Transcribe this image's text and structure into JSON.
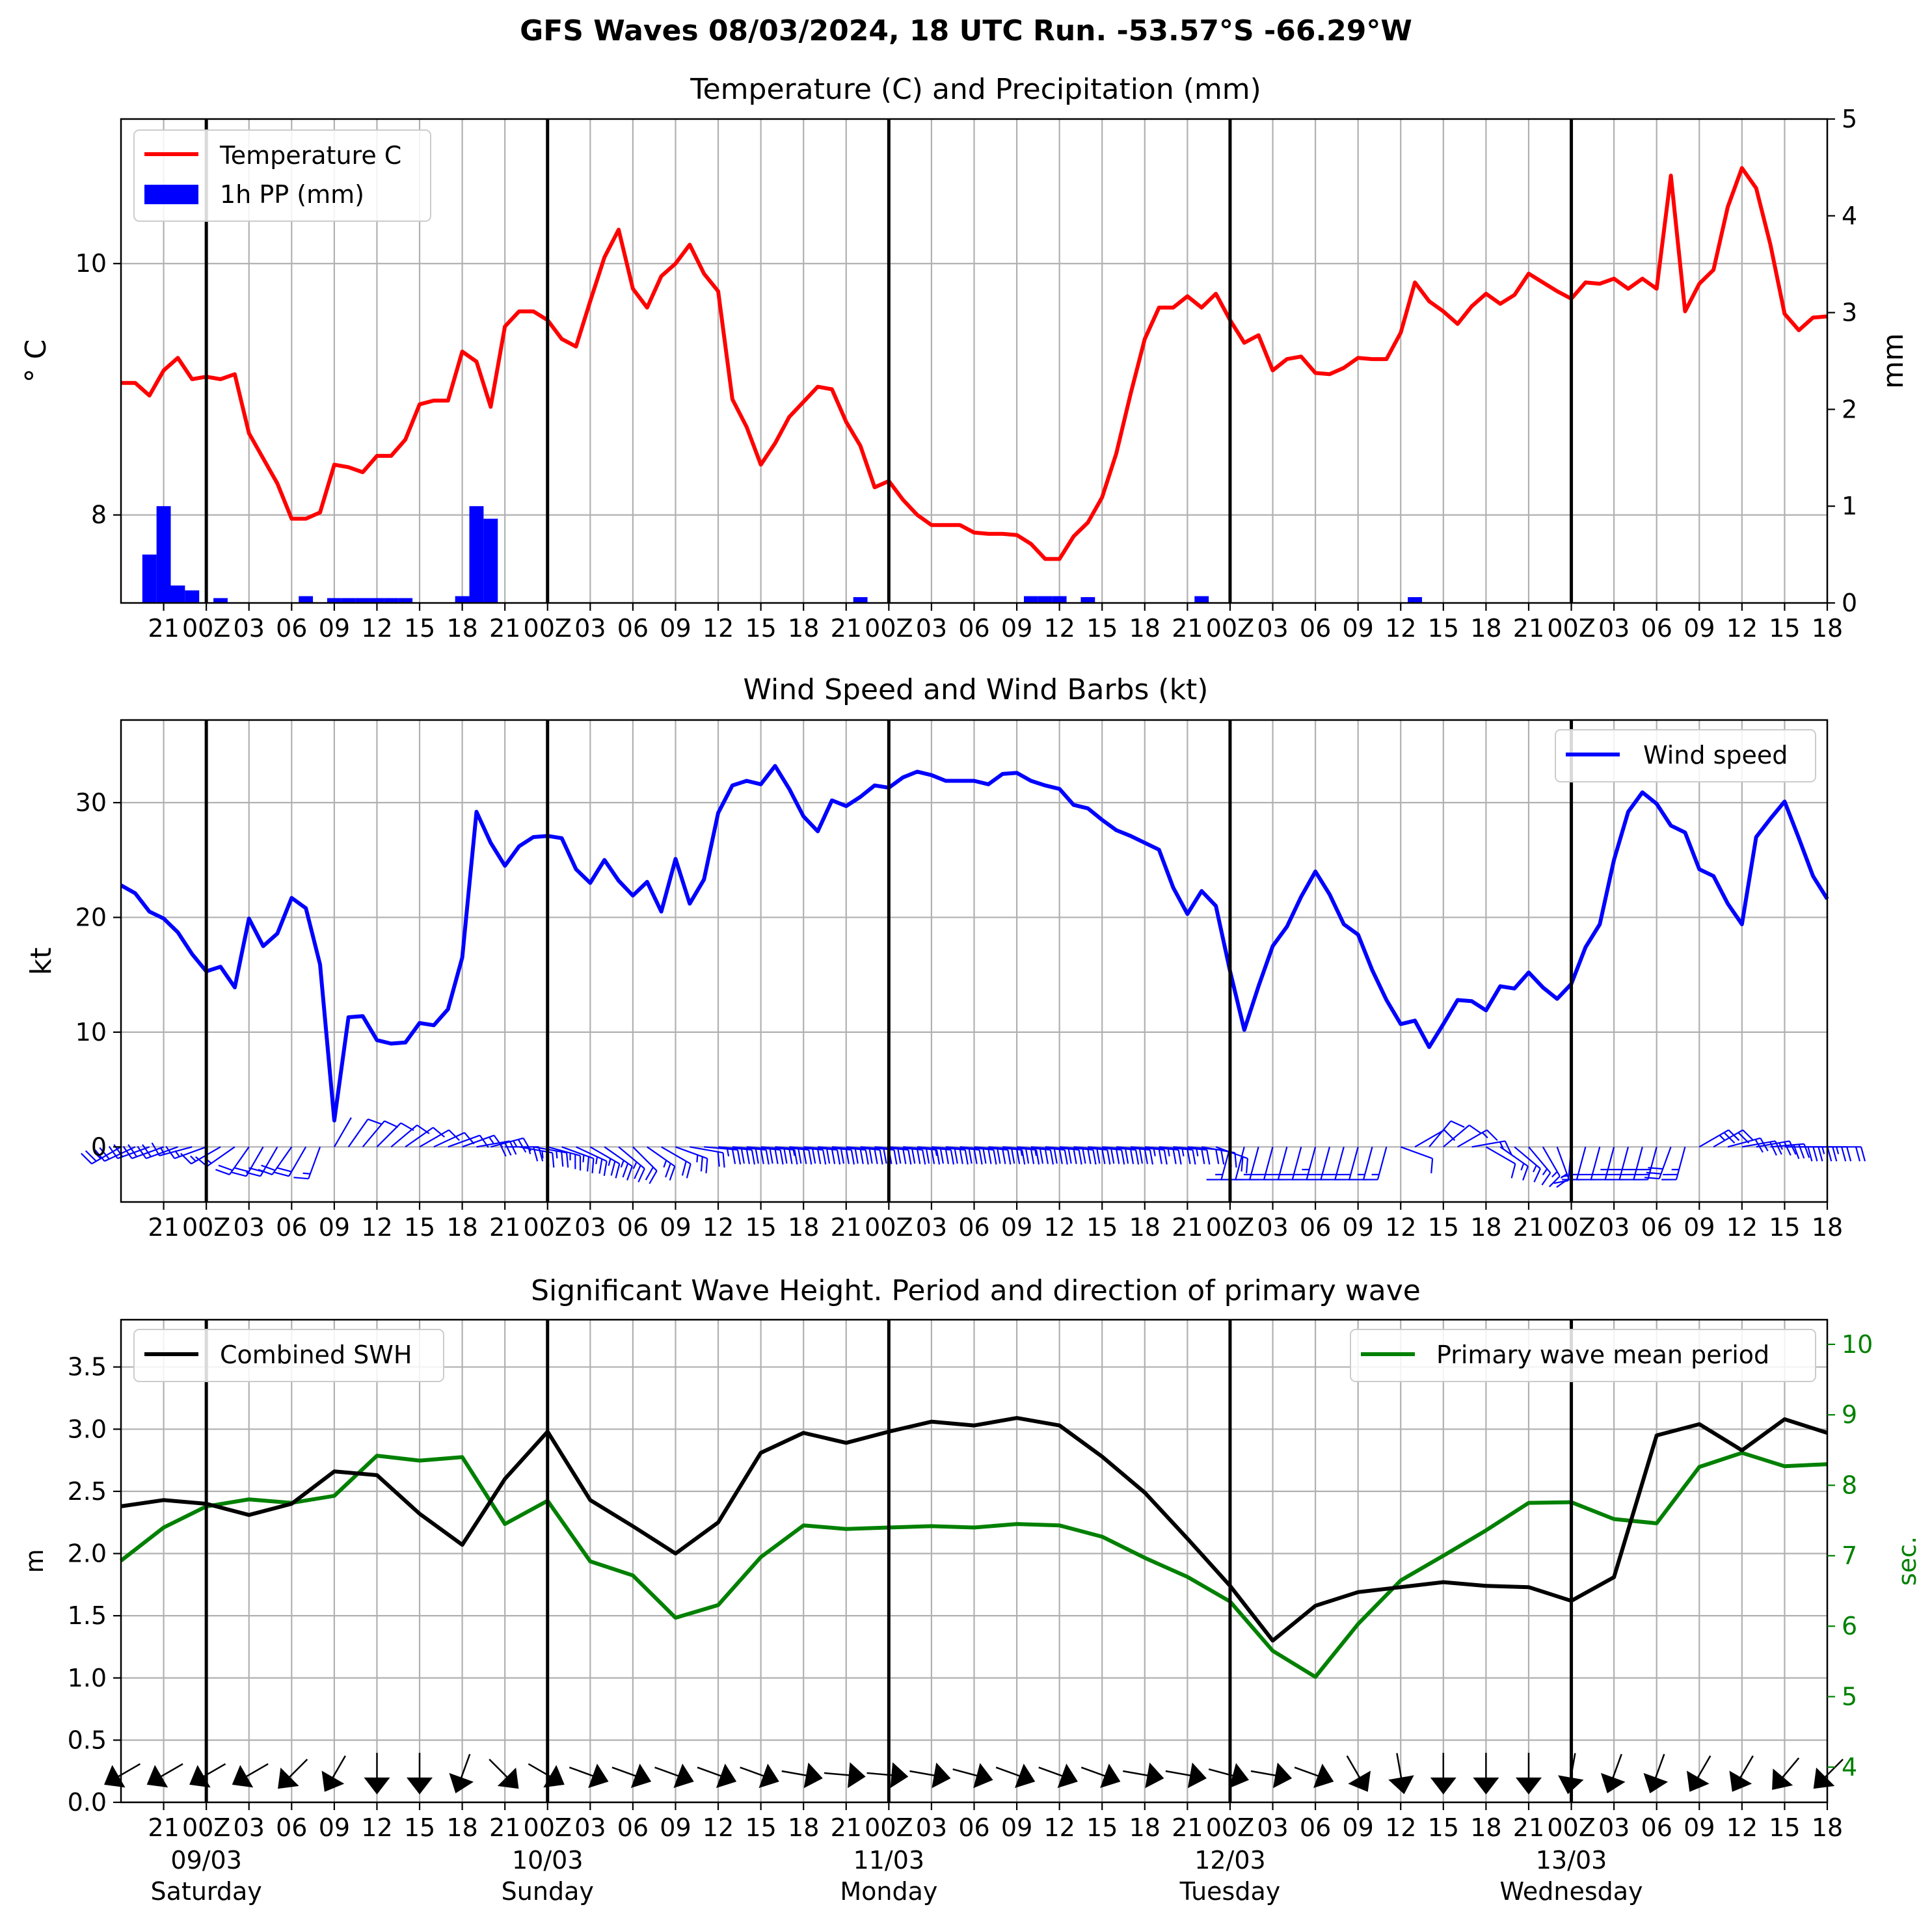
{
  "title": "GFS Waves 08/03/2024, 18 UTC Run. -53.57°S -66.29°W",
  "colors": {
    "temperature": "#ff0000",
    "precip": "#0000ff",
    "wind": "#0000ff",
    "swh": "#000000",
    "period": "#008000",
    "grid": "#b0b0b0"
  },
  "time_axis": {
    "start_hours": 0,
    "end_hours": 120,
    "note_ticks": "hours since 08/03 18 UTC; tick every 3h",
    "tick_labels": [
      "21",
      "00Z",
      "03",
      "06",
      "09",
      "12",
      "15",
      "18",
      "21",
      "00Z",
      "03",
      "06",
      "09",
      "12",
      "15",
      "18",
      "21",
      "00Z",
      "03",
      "06",
      "09",
      "12",
      "15",
      "18",
      "21",
      "00Z",
      "03",
      "06",
      "09",
      "12",
      "15",
      "18",
      "21",
      "00Z",
      "03",
      "06",
      "09",
      "12",
      "15",
      "18"
    ],
    "tick_hours": [
      3,
      6,
      9,
      12,
      15,
      18,
      21,
      24,
      27,
      30,
      33,
      36,
      39,
      42,
      45,
      48,
      51,
      54,
      57,
      60,
      63,
      66,
      69,
      72,
      75,
      78,
      81,
      84,
      87,
      90,
      93,
      96,
      99,
      102,
      105,
      108,
      111,
      114,
      117,
      120
    ],
    "day_lines": [
      6,
      30,
      54,
      78,
      102
    ],
    "day_labels": [
      {
        "date": "09/03",
        "day": "Saturday"
      },
      {
        "date": "10/03",
        "day": "Sunday"
      },
      {
        "date": "11/03",
        "day": "Monday"
      },
      {
        "date": "12/03",
        "day": "Tuesday"
      },
      {
        "date": "13/03",
        "day": "Wednesday"
      }
    ]
  },
  "chart_data": [
    {
      "type": "line",
      "title": "Temperature (C) and Precipitation (mm)",
      "ylabel": "$^\\circ$C",
      "ylabel_display": "° C",
      "ylim": [
        7.3,
        11.15
      ],
      "yticks": [
        8,
        10
      ],
      "y2label": "mm",
      "y2lim": [
        0,
        5
      ],
      "y2ticks": [
        0,
        1,
        2,
        3,
        4,
        5
      ],
      "legend": [
        "Temperature C",
        "1h PP (mm)"
      ],
      "legend_position": "upper-left",
      "temperature": {
        "name": "Temperature C",
        "x": [
          0,
          1,
          2,
          3,
          4,
          5,
          6,
          7,
          8,
          9,
          10,
          11,
          12,
          13,
          14,
          15,
          16,
          17,
          18,
          19,
          20,
          21,
          22,
          23,
          24,
          25,
          26,
          27,
          28,
          29,
          30,
          31,
          32,
          33,
          34,
          35,
          36,
          37,
          38,
          39,
          40,
          41,
          42,
          43,
          44,
          45,
          46,
          47,
          48,
          49,
          50,
          51,
          52,
          53,
          54,
          55,
          56,
          57,
          58,
          59,
          60,
          61,
          62,
          63,
          64,
          65,
          66,
          67,
          68,
          69,
          70,
          71,
          72,
          73,
          74,
          75,
          76,
          77,
          78,
          79,
          80,
          81,
          82,
          83,
          84,
          85,
          86,
          87,
          88,
          89,
          90,
          91,
          92,
          93,
          94,
          95,
          96,
          97,
          98,
          99,
          100,
          101,
          102,
          103,
          104,
          105,
          106,
          107,
          108,
          109,
          110,
          111,
          112,
          113,
          114,
          115,
          116,
          117,
          118,
          119,
          120
        ],
        "y": [
          9.05,
          9.05,
          8.95,
          9.15,
          9.25,
          9.08,
          9.1,
          9.08,
          9.12,
          8.65,
          8.45,
          8.25,
          7.97,
          7.97,
          8.02,
          8.4,
          8.38,
          8.34,
          8.47,
          8.47,
          8.6,
          8.88,
          8.91,
          8.91,
          9.3,
          9.22,
          8.86,
          9.5,
          9.62,
          9.62,
          9.55,
          9.4,
          9.34,
          9.7,
          10.05,
          10.27,
          9.8,
          9.65,
          9.9,
          10.0,
          10.15,
          9.92,
          9.78,
          8.92,
          8.7,
          8.4,
          8.57,
          8.78,
          8.9,
          9.02,
          9.0,
          8.74,
          8.55,
          8.22,
          8.27,
          8.12,
          8.0,
          7.92,
          7.92,
          7.92,
          7.86,
          7.85,
          7.85,
          7.84,
          7.77,
          7.65,
          7.65,
          7.83,
          7.94,
          8.14,
          8.49,
          8.96,
          9.4,
          9.65,
          9.65,
          9.74,
          9.65,
          9.76,
          9.55,
          9.37,
          9.43,
          9.15,
          9.24,
          9.26,
          9.13,
          9.12,
          9.17,
          9.25,
          9.24,
          9.24,
          9.45,
          9.85,
          9.7,
          9.62,
          9.52,
          9.66,
          9.76,
          9.68,
          9.75,
          9.92,
          9.85,
          9.78,
          9.72,
          9.85,
          9.84,
          9.88,
          9.8,
          9.88,
          9.8,
          10.7,
          9.62,
          9.84,
          9.95,
          10.45,
          10.76,
          10.6,
          10.15,
          9.6,
          9.47,
          9.57,
          9.58
        ]
      },
      "precip": {
        "name": "1h PP (mm)",
        "x": [
          2,
          3,
          4,
          5,
          7,
          13,
          15,
          16,
          17,
          18,
          19,
          20,
          24,
          25,
          26,
          52,
          64,
          65,
          66,
          68,
          76,
          91
        ],
        "y": [
          0.5,
          1.0,
          0.18,
          0.13,
          0.05,
          0.07,
          0.05,
          0.05,
          0.05,
          0.05,
          0.05,
          0.05,
          0.07,
          1.0,
          0.87,
          0.06,
          0.07,
          0.07,
          0.07,
          0.06,
          0.07,
          0.06
        ]
      }
    },
    {
      "type": "line",
      "title": "Wind Speed and Wind Barbs (kt)",
      "ylabel": "kt",
      "ylim": [
        -4.8,
        37.2
      ],
      "yticks": [
        0,
        10,
        20,
        30
      ],
      "legend": [
        "Wind speed"
      ],
      "legend_position": "upper-right",
      "series": [
        {
          "name": "Wind speed",
          "x": [
            0,
            1,
            2,
            3,
            4,
            5,
            6,
            7,
            8,
            9,
            10,
            11,
            12,
            13,
            14,
            15,
            16,
            17,
            18,
            19,
            20,
            21,
            22,
            23,
            24,
            25,
            26,
            27,
            28,
            29,
            30,
            31,
            32,
            33,
            34,
            35,
            36,
            37,
            38,
            39,
            40,
            41,
            42,
            43,
            44,
            45,
            46,
            47,
            48,
            49,
            50,
            51,
            52,
            53,
            54,
            55,
            56,
            57,
            58,
            59,
            60,
            61,
            62,
            63,
            64,
            65,
            66,
            67,
            68,
            69,
            70,
            71,
            72,
            73,
            74,
            75,
            76,
            77,
            78,
            79,
            80,
            81,
            82,
            83,
            84,
            85,
            86,
            87,
            88,
            89,
            90,
            91,
            92,
            93,
            94,
            95,
            96,
            97,
            98,
            99,
            100,
            101,
            102,
            103,
            104,
            105,
            106,
            107,
            108,
            109,
            110,
            111,
            112,
            113,
            114,
            115,
            116,
            117,
            118,
            119,
            120
          ],
          "y": [
            22.8,
            22.1,
            20.5,
            19.9,
            18.7,
            16.8,
            15.3,
            15.7,
            13.9,
            19.9,
            17.5,
            18.6,
            21.7,
            20.8,
            15.9,
            2.3,
            11.3,
            11.4,
            9.3,
            9.0,
            9.1,
            10.8,
            10.6,
            12.0,
            16.5,
            29.2,
            26.5,
            24.5,
            26.2,
            27.0,
            27.1,
            26.9,
            24.2,
            23.0,
            25.0,
            23.2,
            21.9,
            23.1,
            20.5,
            25.1,
            21.2,
            23.3,
            29.1,
            31.5,
            31.9,
            31.6,
            33.2,
            31.2,
            28.8,
            27.5,
            30.2,
            29.7,
            30.5,
            31.5,
            31.3,
            32.2,
            32.7,
            32.4,
            31.9,
            31.9,
            31.9,
            31.6,
            32.5,
            32.6,
            31.9,
            31.5,
            31.2,
            29.8,
            29.5,
            28.5,
            27.6,
            27.1,
            26.5,
            25.9,
            22.6,
            20.3,
            22.3,
            21.0,
            15.3,
            10.2,
            14.0,
            17.5,
            19.2,
            21.8,
            24.0,
            22.0,
            19.4,
            18.5,
            15.4,
            12.8,
            10.7,
            11.0,
            8.7,
            10.7,
            12.8,
            12.7,
            11.9,
            14.0,
            13.8,
            15.2,
            13.9,
            12.9,
            14.2,
            17.4,
            19.4,
            25.0,
            29.2,
            30.9,
            29.9,
            28.0,
            27.4,
            24.2,
            23.6,
            21.2,
            19.4,
            27.0,
            28.6,
            30.1,
            26.9,
            23.6,
            21.6
          ]
        }
      ]
    },
    {
      "type": "line",
      "title": "Significant Wave Height. Period and direction of primary wave",
      "ylabel": "m",
      "ylim": [
        0,
        3.88
      ],
      "yticks": [
        0.0,
        0.5,
        1.0,
        1.5,
        2.0,
        2.5,
        3.0,
        3.5
      ],
      "ytick_labels": [
        "0.0",
        "0.5",
        "1.0",
        "1.5",
        "2.0",
        "2.5",
        "3.0",
        "3.5"
      ],
      "y2label": "sec.",
      "y2lim": [
        3.5,
        10.35
      ],
      "y2ticks": [
        4,
        5,
        6,
        7,
        8,
        9,
        10
      ],
      "legend_left": [
        "Combined SWH"
      ],
      "legend_right": [
        "Primary wave mean period"
      ],
      "series": [
        {
          "name": "Combined SWH",
          "x": [
            0,
            3,
            6,
            9,
            12,
            15,
            18,
            21,
            24,
            27,
            30,
            33,
            36,
            39,
            42,
            45,
            48,
            51,
            54,
            57,
            60,
            63,
            66,
            69,
            72,
            75,
            78,
            81,
            84,
            87,
            90,
            93,
            96,
            99,
            102,
            105,
            108,
            111,
            114,
            117,
            120
          ],
          "y": [
            2.38,
            2.43,
            2.4,
            2.31,
            2.4,
            2.66,
            2.63,
            2.32,
            2.07,
            2.6,
            2.98,
            2.43,
            2.22,
            2.0,
            2.25,
            2.81,
            2.97,
            2.89,
            2.98,
            3.06,
            3.03,
            3.09,
            3.03,
            2.78,
            2.49,
            2.12,
            1.74,
            1.3,
            1.58,
            1.69,
            1.73,
            1.77,
            1.74,
            1.73,
            1.62,
            1.81,
            2.95,
            3.04,
            2.83,
            3.08,
            2.97
          ]
        },
        {
          "name": "Primary wave mean period",
          "x": [
            0,
            3,
            6,
            9,
            12,
            15,
            18,
            21,
            24,
            27,
            30,
            33,
            36,
            39,
            42,
            45,
            48,
            51,
            54,
            57,
            60,
            63,
            66,
            69,
            72,
            75,
            78,
            81,
            84,
            87,
            90,
            93,
            96,
            99,
            102,
            105,
            108,
            111,
            114,
            117,
            120
          ],
          "y": [
            6.93,
            7.4,
            7.7,
            7.8,
            7.75,
            7.85,
            8.42,
            8.35,
            8.4,
            7.45,
            7.78,
            6.92,
            6.72,
            6.12,
            6.3,
            6.98,
            7.43,
            7.38,
            7.4,
            7.42,
            7.4,
            7.45,
            7.43,
            7.27,
            6.97,
            6.7,
            6.35,
            5.65,
            5.28,
            6.03,
            6.65,
            7.0,
            7.36,
            7.75,
            7.76,
            7.52,
            7.46,
            8.26,
            8.46,
            8.27,
            8.3
          ]
        }
      ],
      "wave_dir_from_deg": [
        60,
        60,
        60,
        60,
        45,
        30,
        0,
        0,
        20,
        315,
        300,
        290,
        290,
        290,
        290,
        290,
        280,
        275,
        275,
        280,
        285,
        290,
        290,
        290,
        280,
        280,
        285,
        280,
        290,
        330,
        350,
        0,
        0,
        0,
        10,
        20,
        20,
        30,
        30,
        40,
        45
      ]
    }
  ],
  "wind_barbs": {
    "x": [
      0,
      1,
      2,
      3,
      4,
      5,
      6,
      7,
      8,
      9,
      10,
      11,
      12,
      13,
      14,
      15,
      16,
      17,
      18,
      19,
      20,
      21,
      22,
      23,
      24,
      25,
      26,
      27,
      28,
      29,
      30,
      31,
      32,
      33,
      34,
      35,
      36,
      37,
      38,
      39,
      40,
      41,
      42,
      43,
      44,
      45,
      46,
      47,
      48,
      49,
      50,
      51,
      52,
      53,
      54,
      55,
      56,
      57,
      58,
      59,
      60,
      61,
      62,
      63,
      64,
      65,
      66,
      67,
      68,
      69,
      70,
      71,
      72,
      73,
      74,
      75,
      76,
      77,
      78,
      79,
      80,
      81,
      82,
      83,
      84,
      85,
      86,
      87,
      88,
      89,
      90,
      91,
      92,
      93,
      94,
      95,
      96,
      97,
      98,
      99,
      100,
      101,
      102,
      103,
      104,
      105,
      106,
      107,
      108,
      109,
      110,
      111,
      112,
      113,
      114,
      115,
      116,
      117,
      118,
      119,
      120
    ],
    "dir_from_deg": [
      240,
      245,
      250,
      250,
      250,
      255,
      250,
      240,
      235,
      215,
      210,
      210,
      215,
      210,
      200,
      30,
      35,
      40,
      45,
      50,
      55,
      60,
      65,
      70,
      70,
      80,
      75,
      90,
      100,
      100,
      105,
      110,
      115,
      120,
      125,
      130,
      135,
      125,
      120,
      110,
      100,
      95,
      95,
      95,
      95,
      95,
      95,
      95,
      95,
      95,
      95,
      95,
      95,
      95,
      95,
      95,
      95,
      95,
      95,
      95,
      95,
      95,
      95,
      95,
      95,
      95,
      95,
      95,
      95,
      95,
      95,
      95,
      95,
      95,
      95,
      95,
      100,
      110,
      195,
      195,
      195,
      195,
      195,
      195,
      195,
      195,
      195,
      195,
      195,
      195,
      110,
      60,
      40,
      50,
      60,
      80,
      120,
      125,
      130,
      140,
      150,
      160,
      185,
      195,
      195,
      195,
      195,
      195,
      195,
      200,
      195,
      60,
      60,
      75,
      80,
      80,
      85,
      90,
      90,
      90,
      90
    ]
  }
}
